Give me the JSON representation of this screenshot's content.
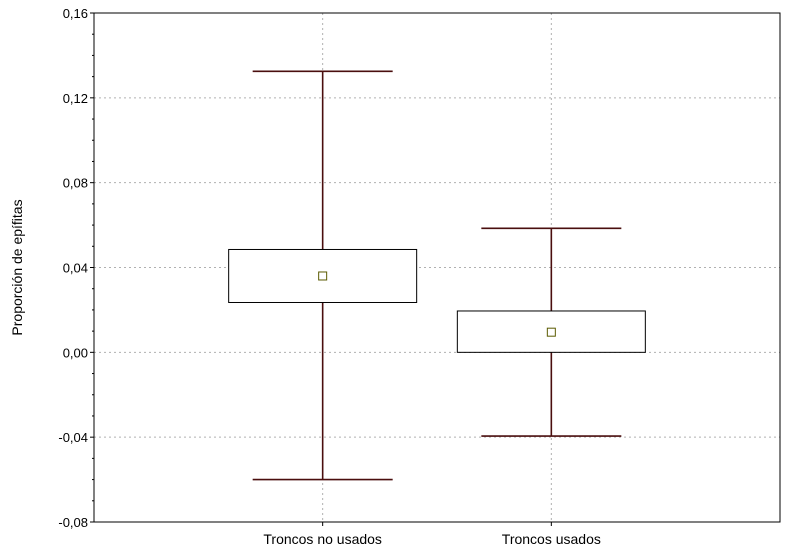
{
  "chart_data": {
    "type": "box",
    "title": "",
    "xlabel": "",
    "ylabel": "Proporción de epífitas",
    "ylim": [
      -0.08,
      0.16
    ],
    "y_ticks": [
      "-0,08",
      "-0,04",
      "0,00",
      "0,04",
      "0,08",
      "0,12",
      "0,16"
    ],
    "y_tick_values": [
      -0.08,
      -0.04,
      0.0,
      0.04,
      0.08,
      0.12,
      0.16
    ],
    "categories": [
      "Troncos no usados",
      "Troncos usados"
    ],
    "boxes": [
      {
        "category": "Troncos no usados",
        "whisker_low": -0.06,
        "box_low": 0.0235,
        "mean": 0.036,
        "box_high": 0.0485,
        "whisker_high": 0.1325
      },
      {
        "category": "Troncos usados",
        "whisker_low": -0.0395,
        "box_low": 0.0,
        "mean": 0.0095,
        "box_high": 0.0195,
        "whisker_high": 0.0585
      }
    ],
    "grid": true,
    "colors": {
      "whisker": "#4a0e0e",
      "box": "#000000",
      "mean_marker": "#5a5a00",
      "grid": "#b0b0b0"
    }
  }
}
